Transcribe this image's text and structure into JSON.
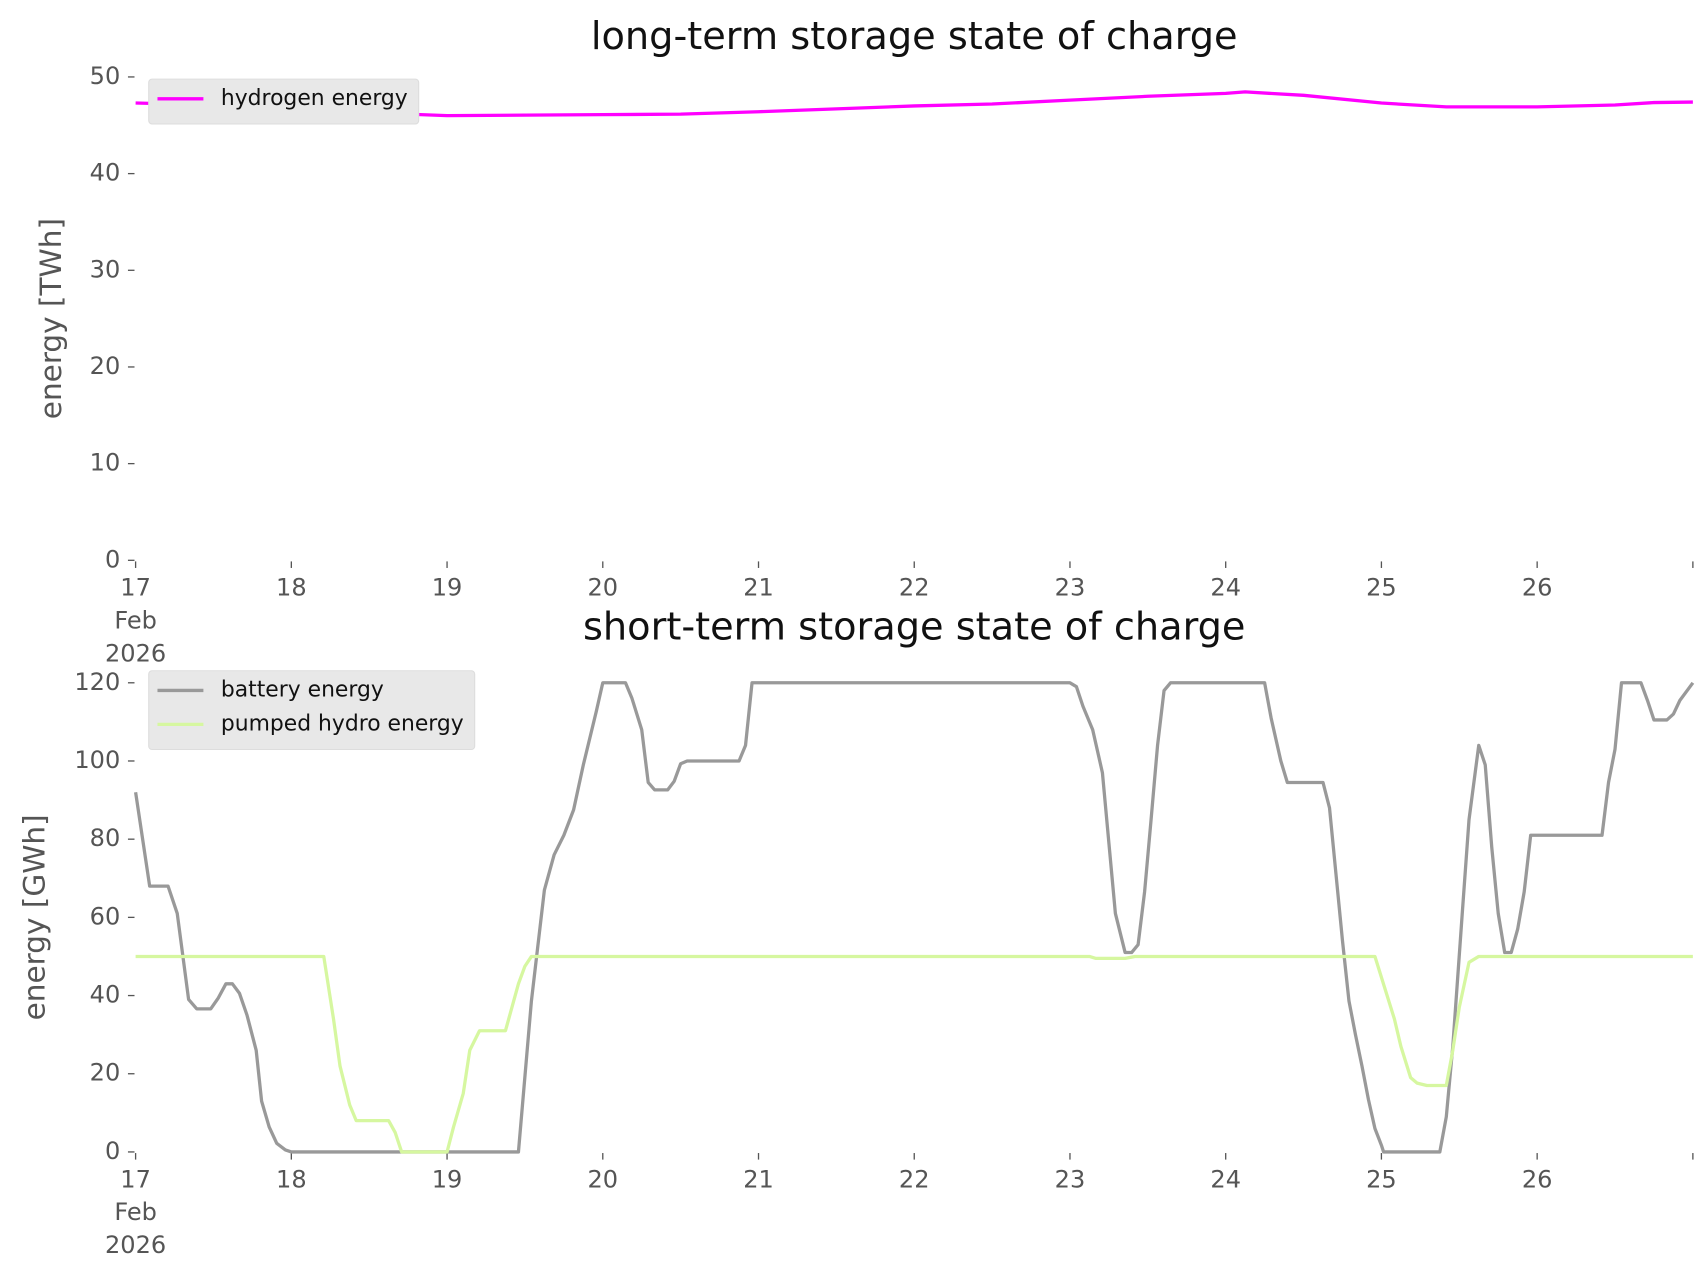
{
  "chart_data": [
    {
      "type": "line",
      "title": "long-term storage state of charge",
      "ylabel": "energy [TWh]",
      "xlim": [
        "2026-02-17T00:00",
        "2026-02-27T00:00"
      ],
      "xticks": [
        {
          "value": "2026-02-17T00:00",
          "label": "17\nFeb\n2026"
        },
        {
          "value": "2026-02-18T00:00",
          "label": "18"
        },
        {
          "value": "2026-02-19T00:00",
          "label": "19"
        },
        {
          "value": "2026-02-20T00:00",
          "label": "20"
        },
        {
          "value": "2026-02-21T00:00",
          "label": "21"
        },
        {
          "value": "2026-02-22T00:00",
          "label": "22"
        },
        {
          "value": "2026-02-23T00:00",
          "label": "23"
        },
        {
          "value": "2026-02-24T00:00",
          "label": "24"
        },
        {
          "value": "2026-02-25T00:00",
          "label": "25"
        },
        {
          "value": "2026-02-26T00:00",
          "label": "26"
        },
        {
          "value": "2026-02-27T00:00",
          "label": null
        }
      ],
      "ylim": [
        0,
        50
      ],
      "yticks": [
        0,
        10,
        20,
        30,
        40,
        50
      ],
      "legend": "upper left",
      "series": [
        {
          "name": "hydrogen energy",
          "color": "#ff00ff",
          "x": [
            "2026-02-17T00:00",
            "2026-02-17T12:00",
            "2026-02-18T00:00",
            "2026-02-18T12:00",
            "2026-02-19T00:00",
            "2026-02-19T12:00",
            "2026-02-20T00:00",
            "2026-02-20T12:00",
            "2026-02-21T00:00",
            "2026-02-21T12:00",
            "2026-02-22T00:00",
            "2026-02-22T12:00",
            "2026-02-23T00:00",
            "2026-02-23T12:00",
            "2026-02-24T00:00",
            "2026-02-24T03:00",
            "2026-02-24T12:00",
            "2026-02-25T00:00",
            "2026-02-25T10:00",
            "2026-02-26T00:00",
            "2026-02-26T12:00",
            "2026-02-26T18:00",
            "2026-02-27T00:00"
          ],
          "values": [
            47.3,
            47.1,
            46.9,
            46.3,
            46.0,
            46.05,
            46.1,
            46.15,
            46.4,
            46.7,
            47.0,
            47.2,
            47.6,
            48.0,
            48.3,
            48.45,
            48.1,
            47.3,
            46.9,
            46.9,
            47.1,
            47.35,
            47.4
          ]
        }
      ]
    },
    {
      "type": "line",
      "title": "short-term storage state of charge",
      "ylabel": "energy [GWh]",
      "xlim": [
        "2026-02-17T00:00",
        "2026-02-27T00:00"
      ],
      "xticks": [
        {
          "value": "2026-02-17T00:00",
          "label": "17\nFeb\n2026"
        },
        {
          "value": "2026-02-18T00:00",
          "label": "18"
        },
        {
          "value": "2026-02-19T00:00",
          "label": "19"
        },
        {
          "value": "2026-02-20T00:00",
          "label": "20"
        },
        {
          "value": "2026-02-21T00:00",
          "label": "21"
        },
        {
          "value": "2026-02-22T00:00",
          "label": "22"
        },
        {
          "value": "2026-02-23T00:00",
          "label": "23"
        },
        {
          "value": "2026-02-24T00:00",
          "label": "24"
        },
        {
          "value": "2026-02-25T00:00",
          "label": "25"
        },
        {
          "value": "2026-02-26T00:00",
          "label": "26"
        },
        {
          "value": "2026-02-27T00:00",
          "label": null
        }
      ],
      "ylim": [
        0,
        120
      ],
      "yticks": [
        0,
        20,
        40,
        60,
        80,
        100,
        120
      ],
      "legend": "upper left",
      "series": [
        {
          "name": "battery energy",
          "color": "#999999",
          "x": [
            "2026-02-17T00:00",
            "2026-02-17T02:10",
            "2026-02-17T05:00",
            "2026-02-17T06:25",
            "2026-02-17T08:10",
            "2026-02-17T09:25",
            "2026-02-17T11:35",
            "2026-02-17T12:45",
            "2026-02-17T13:55",
            "2026-02-17T14:55",
            "2026-02-17T16:00",
            "2026-02-17T17:10",
            "2026-02-17T18:35",
            "2026-02-17T19:25",
            "2026-02-17T20:35",
            "2026-02-17T21:45",
            "2026-02-17T23:05",
            "2026-02-18T00:00",
            "2026-02-19T11:00",
            "2026-02-19T13:00",
            "2026-02-19T15:00",
            "2026-02-19T16:30",
            "2026-02-19T18:00",
            "2026-02-19T19:30",
            "2026-02-19T21:00",
            "2026-02-19T23:00",
            "2026-02-20T00:00",
            "2026-02-20T03:30",
            "2026-02-20T04:30",
            "2026-02-20T06:00",
            "2026-02-20T07:00",
            "2026-02-20T08:00",
            "2026-02-20T10:00",
            "2026-02-20T11:00",
            "2026-02-20T12:00",
            "2026-02-20T13:00",
            "2026-02-20T21:00",
            "2026-02-20T22:00",
            "2026-02-20T23:00",
            "2026-02-23T00:00",
            "2026-02-23T01:00",
            "2026-02-23T02:00",
            "2026-02-23T03:30",
            "2026-02-23T05:00",
            "2026-02-23T06:00",
            "2026-02-23T07:00",
            "2026-02-23T08:30",
            "2026-02-23T09:30",
            "2026-02-23T10:30",
            "2026-02-23T11:30",
            "2026-02-23T12:30",
            "2026-02-23T13:30",
            "2026-02-23T14:30",
            "2026-02-23T15:30",
            "2026-02-24T06:00",
            "2026-02-24T07:00",
            "2026-02-24T08:30",
            "2026-02-24T09:30",
            "2026-02-24T15:00",
            "2026-02-24T16:00",
            "2026-02-24T17:00",
            "2026-02-24T18:00",
            "2026-02-24T19:00",
            "2026-02-24T20:00",
            "2026-02-24T21:00",
            "2026-02-24T22:00",
            "2026-02-24T23:00",
            "2026-02-25T00:00",
            "2026-02-25T00:20",
            "2026-02-25T09:00",
            "2026-02-25T10:00",
            "2026-02-25T11:00",
            "2026-02-25T12:30",
            "2026-02-25T13:30",
            "2026-02-25T15:00",
            "2026-02-25T16:00",
            "2026-02-25T17:00",
            "2026-02-25T18:00",
            "2026-02-25T19:00",
            "2026-02-25T20:00",
            "2026-02-25T21:00",
            "2026-02-25T22:00",
            "2026-02-25T23:00",
            "2026-02-26T10:00",
            "2026-02-26T11:00",
            "2026-02-26T12:00",
            "2026-02-26T13:00",
            "2026-02-26T16:00",
            "2026-02-26T17:00",
            "2026-02-26T18:00",
            "2026-02-26T20:00",
            "2026-02-26T21:00",
            "2026-02-26T22:00",
            "2026-02-27T00:00"
          ],
          "values": [
            92,
            68,
            68,
            61,
            39,
            36.6,
            36.6,
            39.4,
            43,
            43,
            40.6,
            35,
            26,
            13,
            6.4,
            2.2,
            0.5,
            0,
            0,
            38.6,
            67,
            76,
            81,
            87.5,
            99,
            112.7,
            120,
            120,
            116,
            108,
            94.5,
            92.6,
            92.6,
            94.8,
            99.3,
            100,
            100,
            104,
            120,
            120,
            119,
            114,
            108,
            97,
            79,
            61,
            51,
            51,
            53,
            66.5,
            85,
            104,
            118,
            120,
            120,
            111,
            100,
            94.5,
            94.5,
            88,
            71,
            54,
            38.6,
            30,
            22,
            13.4,
            6,
            1.7,
            0,
            0,
            9,
            27,
            62,
            85,
            104,
            99,
            78,
            61,
            51,
            51,
            57,
            66.5,
            81,
            81,
            94.5,
            103,
            120,
            120,
            115.5,
            110.5,
            110.5,
            112,
            115.5,
            120
          ]
        },
        {
          "name": "pumped hydro energy",
          "color": "#d6f7a0",
          "x": [
            "2026-02-17T00:00",
            "2026-02-18T05:00",
            "2026-02-18T06:30",
            "2026-02-18T07:30",
            "2026-02-18T09:00",
            "2026-02-18T10:00",
            "2026-02-18T15:00",
            "2026-02-18T16:00",
            "2026-02-18T17:00",
            "2026-02-19T00:00",
            "2026-02-19T01:00",
            "2026-02-19T02:30",
            "2026-02-19T03:30",
            "2026-02-19T05:00",
            "2026-02-19T09:00",
            "2026-02-19T10:00",
            "2026-02-19T11:00",
            "2026-02-19T12:00",
            "2026-02-19T13:00",
            "2026-02-23T03:00",
            "2026-02-23T04:00",
            "2026-02-23T08:30",
            "2026-02-23T10:00",
            "2026-02-24T23:00",
            "2026-02-25T00:30",
            "2026-02-25T02:00",
            "2026-02-25T03:00",
            "2026-02-25T04:30",
            "2026-02-25T05:30",
            "2026-02-25T07:00",
            "2026-02-25T10:00",
            "2026-02-25T11:00",
            "2026-02-25T12:00",
            "2026-02-25T13:30",
            "2026-02-25T15:00",
            "2026-02-27T00:00"
          ],
          "values": [
            50,
            50,
            34,
            22,
            12,
            8,
            8,
            5,
            0,
            0,
            6.4,
            15,
            26,
            31,
            31,
            37,
            43,
            47.5,
            50,
            50,
            49.5,
            49.5,
            50,
            50,
            42,
            34,
            27,
            19,
            17.6,
            17,
            17,
            26,
            37,
            48.5,
            50,
            50
          ]
        }
      ]
    }
  ]
}
